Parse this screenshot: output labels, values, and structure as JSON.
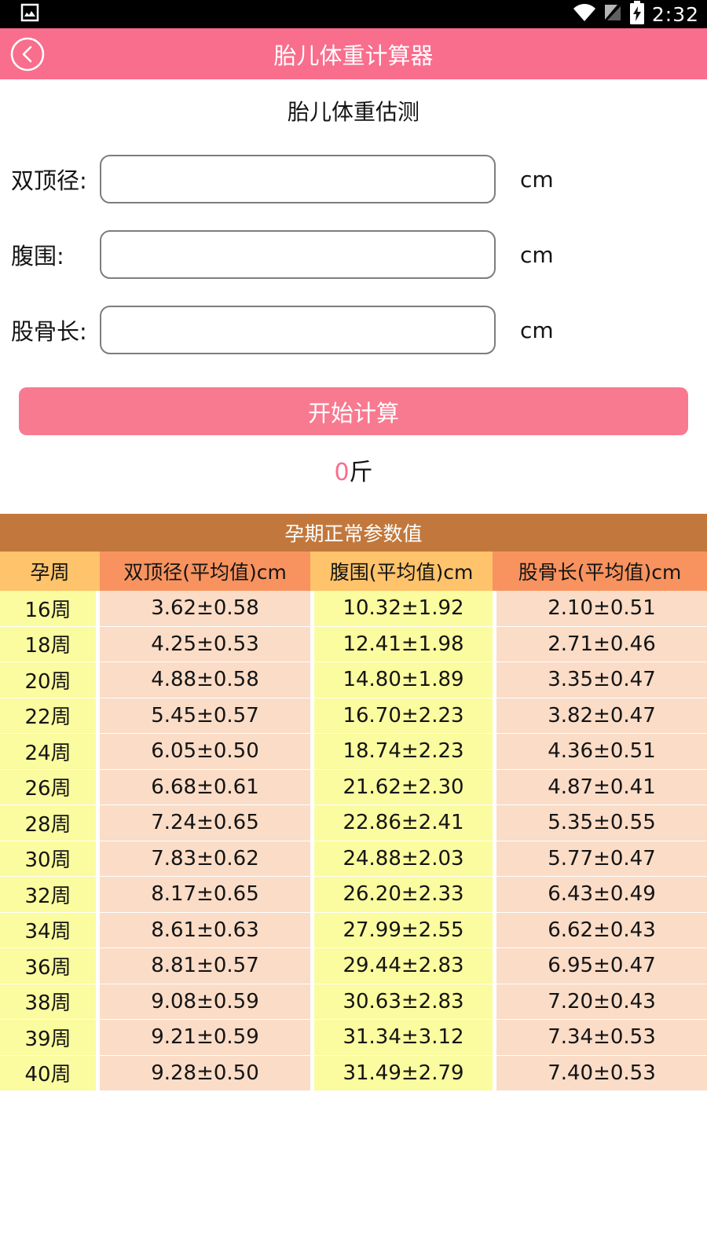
{
  "status_bar": {
    "time": "2:32",
    "icons": [
      "image-notification-icon",
      "wifi-icon",
      "no-sim-icon",
      "battery-charging-icon"
    ]
  },
  "app_bar": {
    "title": "胎儿体重计算器",
    "back_icon": "chevron-left-circle-icon"
  },
  "form": {
    "title": "胎儿体重估测",
    "fields": [
      {
        "label": "双顶径:",
        "value": "",
        "unit": "cm"
      },
      {
        "label": "腹围:",
        "value": "",
        "unit": "cm"
      },
      {
        "label": "股骨长:",
        "value": "",
        "unit": "cm"
      }
    ],
    "submit_label": "开始计算",
    "result": {
      "value": "0",
      "unit": "斤"
    }
  },
  "table": {
    "title": "孕期正常参数值",
    "headers": [
      "孕周",
      "双顶径(平均值)cm",
      "腹围(平均值)cm",
      "股骨长(平均值)cm"
    ],
    "rows": [
      [
        "16周",
        "3.62±0.58",
        "10.32±1.92",
        "2.10±0.51"
      ],
      [
        "18周",
        "4.25±0.53",
        "12.41±1.98",
        "2.71±0.46"
      ],
      [
        "20周",
        "4.88±0.58",
        "14.80±1.89",
        "3.35±0.47"
      ],
      [
        "22周",
        "5.45±0.57",
        "16.70±2.23",
        "3.82±0.47"
      ],
      [
        "24周",
        "6.05±0.50",
        "18.74±2.23",
        "4.36±0.51"
      ],
      [
        "26周",
        "6.68±0.61",
        "21.62±2.30",
        "4.87±0.41"
      ],
      [
        "28周",
        "7.24±0.65",
        "22.86±2.41",
        "5.35±0.55"
      ],
      [
        "30周",
        "7.83±0.62",
        "24.88±2.03",
        "5.77±0.47"
      ],
      [
        "32周",
        "8.17±0.65",
        "26.20±2.33",
        "6.43±0.49"
      ],
      [
        "34周",
        "8.61±0.63",
        "27.99±2.55",
        "6.62±0.43"
      ],
      [
        "36周",
        "8.81±0.57",
        "29.44±2.83",
        "6.95±0.47"
      ],
      [
        "38周",
        "9.08±0.59",
        "30.63±2.83",
        "7.20±0.43"
      ],
      [
        "39周",
        "9.21±0.59",
        "31.34±3.12",
        "7.34±0.53"
      ],
      [
        "40周",
        "9.28±0.50",
        "31.49±2.79",
        "7.40±0.53"
      ]
    ]
  },
  "colors": {
    "accent_pink": "#F96D8D",
    "button_pink": "#F87A90",
    "table_title_bg": "#C2783C",
    "header_amber": "#FEC36B",
    "header_orange": "#F8935F",
    "cell_yellow": "#FBFB9F",
    "cell_peach": "#FADCC7"
  }
}
